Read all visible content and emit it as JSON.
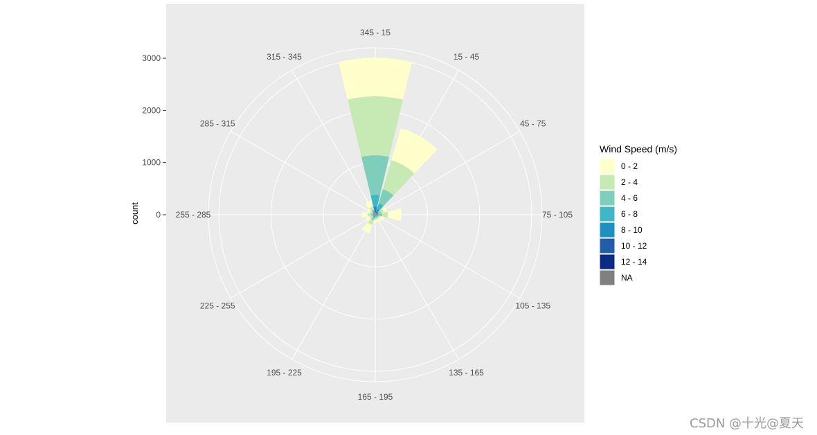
{
  "chart_data": {
    "type": "wind-rose",
    "ylabel": "count",
    "radial_ticks": [
      0,
      1000,
      2000,
      3000
    ],
    "radial_ticks_labels": [
      "0",
      "1000",
      "2000",
      "3000"
    ],
    "rmax": 3200,
    "direction_bins": [
      "345 - 15",
      "15 - 45",
      "45 - 75",
      "75 - 105",
      "105 - 135",
      "135 - 165",
      "165 - 195",
      "195 - 225",
      "225 - 255",
      "255 - 285",
      "285 - 315",
      "315 - 345"
    ],
    "legend": {
      "title": "Wind Speed (m/s)",
      "items": [
        {
          "label": "0 - 2",
          "color": "#FFFFCC"
        },
        {
          "label": "2 - 4",
          "color": "#C7E9B4"
        },
        {
          "label": "4 - 6",
          "color": "#7FCDBB"
        },
        {
          "label": "6 - 8",
          "color": "#41B6C4"
        },
        {
          "label": "8 - 10",
          "color": "#1D91C0"
        },
        {
          "label": "10 - 12",
          "color": "#225EA8"
        },
        {
          "label": "12 - 14",
          "color": "#0C2C84"
        },
        {
          "label": "NA",
          "color": "#808080"
        }
      ]
    },
    "series": [
      {
        "name": "0 - 2",
        "values": [
          740,
          640,
          60,
          260,
          80,
          50,
          40,
          170,
          70,
          110,
          60,
          120
        ]
      },
      {
        "name": "2 - 4",
        "values": [
          1130,
          580,
          60,
          110,
          40,
          30,
          40,
          90,
          50,
          60,
          50,
          60
        ]
      },
      {
        "name": "4 - 6",
        "values": [
          760,
          280,
          40,
          60,
          20,
          20,
          20,
          40,
          20,
          30,
          20,
          30
        ]
      },
      {
        "name": "6 - 8",
        "values": [
          220,
          110,
          20,
          20,
          10,
          10,
          10,
          20,
          10,
          10,
          10,
          20
        ]
      },
      {
        "name": "8 - 10",
        "values": [
          70,
          50,
          10,
          10,
          5,
          5,
          5,
          10,
          5,
          5,
          5,
          10
        ]
      },
      {
        "name": "10 - 12",
        "values": [
          20,
          20,
          5,
          5,
          0,
          0,
          0,
          5,
          0,
          0,
          0,
          5
        ]
      },
      {
        "name": "12 - 14",
        "values": [
          10,
          10,
          0,
          0,
          0,
          0,
          0,
          0,
          0,
          0,
          0,
          0
        ]
      },
      {
        "name": "NA",
        "values": [
          60,
          40,
          40,
          40,
          30,
          30,
          30,
          40,
          30,
          40,
          30,
          40
        ]
      }
    ]
  },
  "watermark": "CSDN @十光@夏天"
}
